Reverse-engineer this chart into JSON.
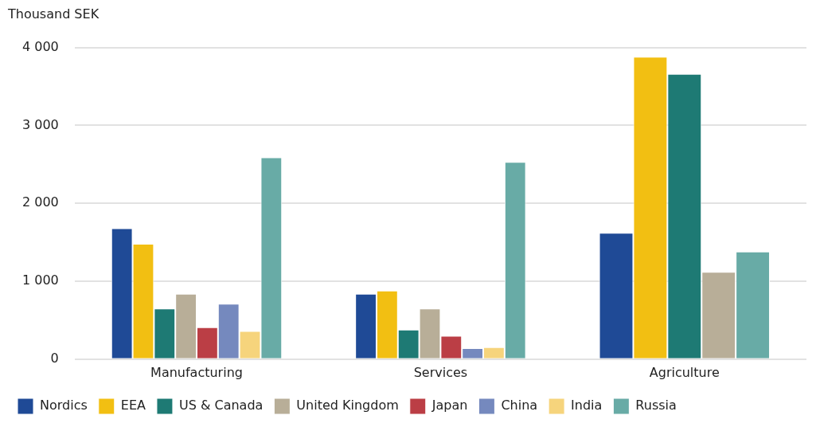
{
  "chart_data": {
    "type": "bar",
    "ylabel": "Thousand SEK",
    "categories": [
      "Manufacturing",
      "Services",
      "Agriculture"
    ],
    "series": [
      {
        "name": "Nordics",
        "color": "#1f4a96",
        "values": [
          1680,
          840,
          1620
        ]
      },
      {
        "name": "EEA",
        "color": "#f2bf12",
        "values": [
          1480,
          880,
          3880
        ]
      },
      {
        "name": "US & Canada",
        "color": "#1e7a74",
        "values": [
          650,
          380,
          3660
        ]
      },
      {
        "name": "United Kingdom",
        "color": "#b8ae98",
        "values": [
          840,
          650,
          1120
        ]
      },
      {
        "name": "Japan",
        "color": "#bb3e45",
        "values": [
          410,
          300,
          null
        ]
      },
      {
        "name": "China",
        "color": "#7589be",
        "values": [
          710,
          140,
          null
        ]
      },
      {
        "name": "India",
        "color": "#f6d47c",
        "values": [
          360,
          155,
          null
        ]
      },
      {
        "name": "Russia",
        "color": "#68aba6",
        "values": [
          2590,
          2530,
          1380
        ]
      }
    ],
    "ylim": [
      0,
      4000
    ],
    "yticks": [
      {
        "value": 0,
        "label": "0"
      },
      {
        "value": 1000,
        "label": "1 000"
      },
      {
        "value": 2000,
        "label": "2 000"
      },
      {
        "value": 3000,
        "label": "3 000"
      },
      {
        "value": 4000,
        "label": "4 000"
      }
    ],
    "grid": "y",
    "legend": "bottom"
  }
}
